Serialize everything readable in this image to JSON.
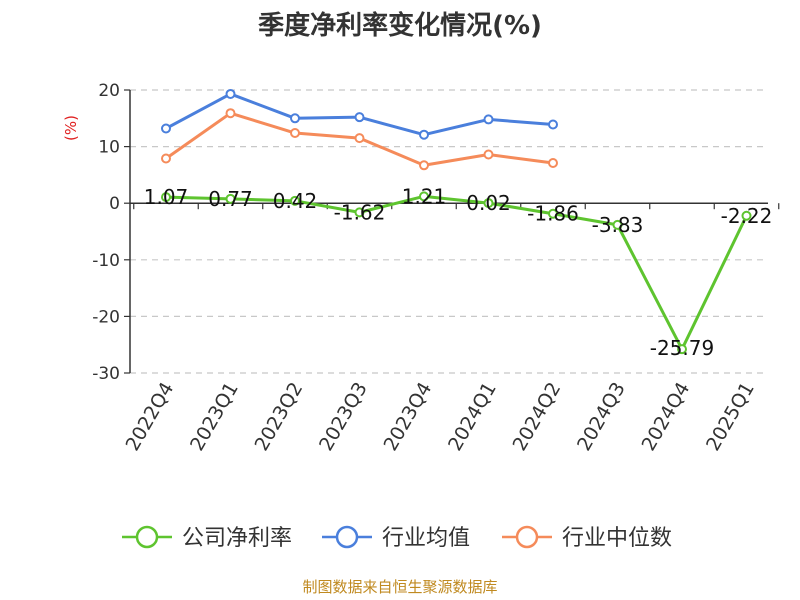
{
  "chart_data": {
    "type": "line",
    "title": "季度净利率变化情况(%)",
    "ylabel": "(%)",
    "xlabel": "",
    "categories": [
      "2022Q4",
      "2023Q1",
      "2023Q2",
      "2023Q3",
      "2023Q4",
      "2024Q1",
      "2024Q2",
      "2024Q3",
      "2024Q4",
      "2025Q1"
    ],
    "ylim": [
      -30,
      20
    ],
    "yticks": [
      20,
      10,
      0,
      -10,
      -20,
      -30
    ],
    "grid": true,
    "legend_position": "bottom",
    "series": [
      {
        "name": "公司净利率",
        "color": "#5ec42f",
        "values": [
          1.07,
          0.77,
          0.42,
          -1.62,
          1.21,
          0.02,
          -1.86,
          -3.83,
          -25.79,
          -2.22
        ],
        "labels": [
          "1.07",
          "0.77",
          "0.42",
          "-1.62",
          "1.21",
          "0.02",
          "-1.86",
          "-3.83",
          "-25.79",
          "-2.22"
        ]
      },
      {
        "name": "行业均值",
        "color": "#4a7fdc",
        "values": [
          13.2,
          19.3,
          15.0,
          15.2,
          12.1,
          14.8,
          13.9,
          null,
          null,
          null
        ]
      },
      {
        "name": "行业中位数",
        "color": "#f58b5a",
        "values": [
          7.9,
          15.9,
          12.4,
          11.5,
          6.7,
          8.6,
          7.1,
          null,
          null,
          null
        ]
      }
    ],
    "source": "制图数据来自恒生聚源数据库"
  }
}
